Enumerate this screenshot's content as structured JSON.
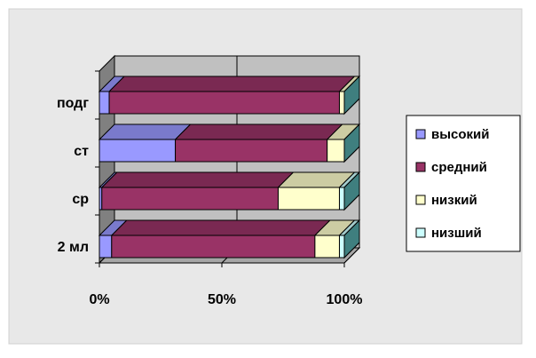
{
  "chart_data": {
    "type": "bar",
    "stacked": "percent",
    "orientation": "horizontal",
    "three_d": true,
    "categories": [
      "подг",
      "ст",
      "ср",
      "2 мл"
    ],
    "series": [
      {
        "name": "высокий",
        "color": "#9999ff",
        "values": [
          4,
          31,
          1,
          5
        ]
      },
      {
        "name": "средний",
        "color": "#993366",
        "values": [
          94,
          62,
          72,
          83
        ]
      },
      {
        "name": "низкий",
        "color": "#ffffcc",
        "values": [
          2,
          7,
          25,
          10
        ]
      },
      {
        "name": "низший",
        "color": "#ccffff",
        "values": [
          0,
          0,
          2,
          2
        ]
      }
    ],
    "x_ticks": [
      "0%",
      "50%",
      "100%"
    ],
    "xlim": [
      0,
      100
    ],
    "grid": true,
    "legend_position": "right",
    "plot_background": "#c0c0c0",
    "chart_area_background": "#e8e8e8"
  }
}
